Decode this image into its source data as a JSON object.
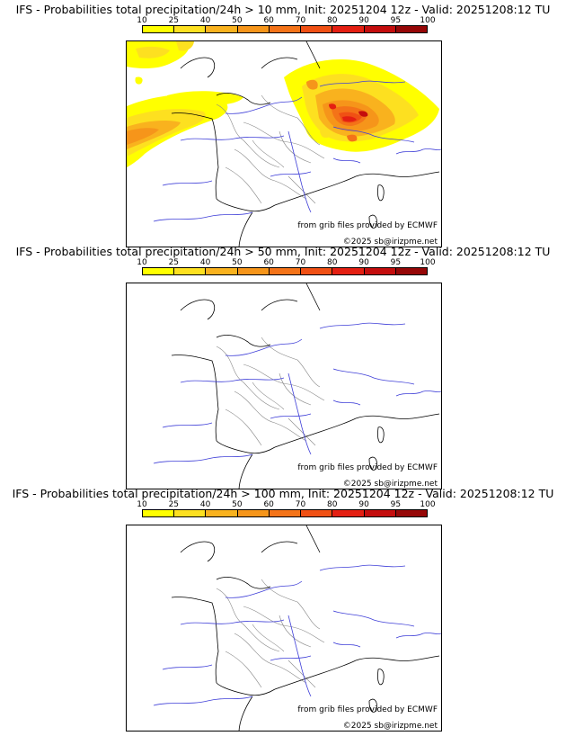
{
  "colorbar": {
    "ticks": [
      "10",
      "25",
      "40",
      "50",
      "60",
      "70",
      "80",
      "90",
      "95",
      "100"
    ],
    "colors": [
      "#ffff00",
      "#fde020",
      "#f9b21e",
      "#f6951a",
      "#f47318",
      "#f05014",
      "#e41f12",
      "#c40d0d",
      "#960707",
      "#660303"
    ]
  },
  "panels": [
    {
      "title": "IFS - Probabilities total precipitation/24h > 10 mm, Init: 20251204 12z - Valid: 20251208:12 TU",
      "credit_line1": "from grib files provided by ECMWF",
      "credit_line2": "©2025 sb@irizpme.net",
      "has_precip": true
    },
    {
      "title": "IFS - Probabilities total precipitation/24h > 50 mm, Init: 20251204 12z - Valid: 20251208:12 TU",
      "credit_line1": "from grib files provided by ECMWF",
      "credit_line2": "©2025 sb@irizpme.net",
      "has_precip": false
    },
    {
      "title": "IFS - Probabilities total precipitation/24h > 100 mm, Init: 20251204 12z - Valid: 20251208:12 TU",
      "credit_line1": "from grib files provided by ECMWF",
      "credit_line2": "©2025 sb@irizpme.net",
      "has_precip": false
    }
  ]
}
